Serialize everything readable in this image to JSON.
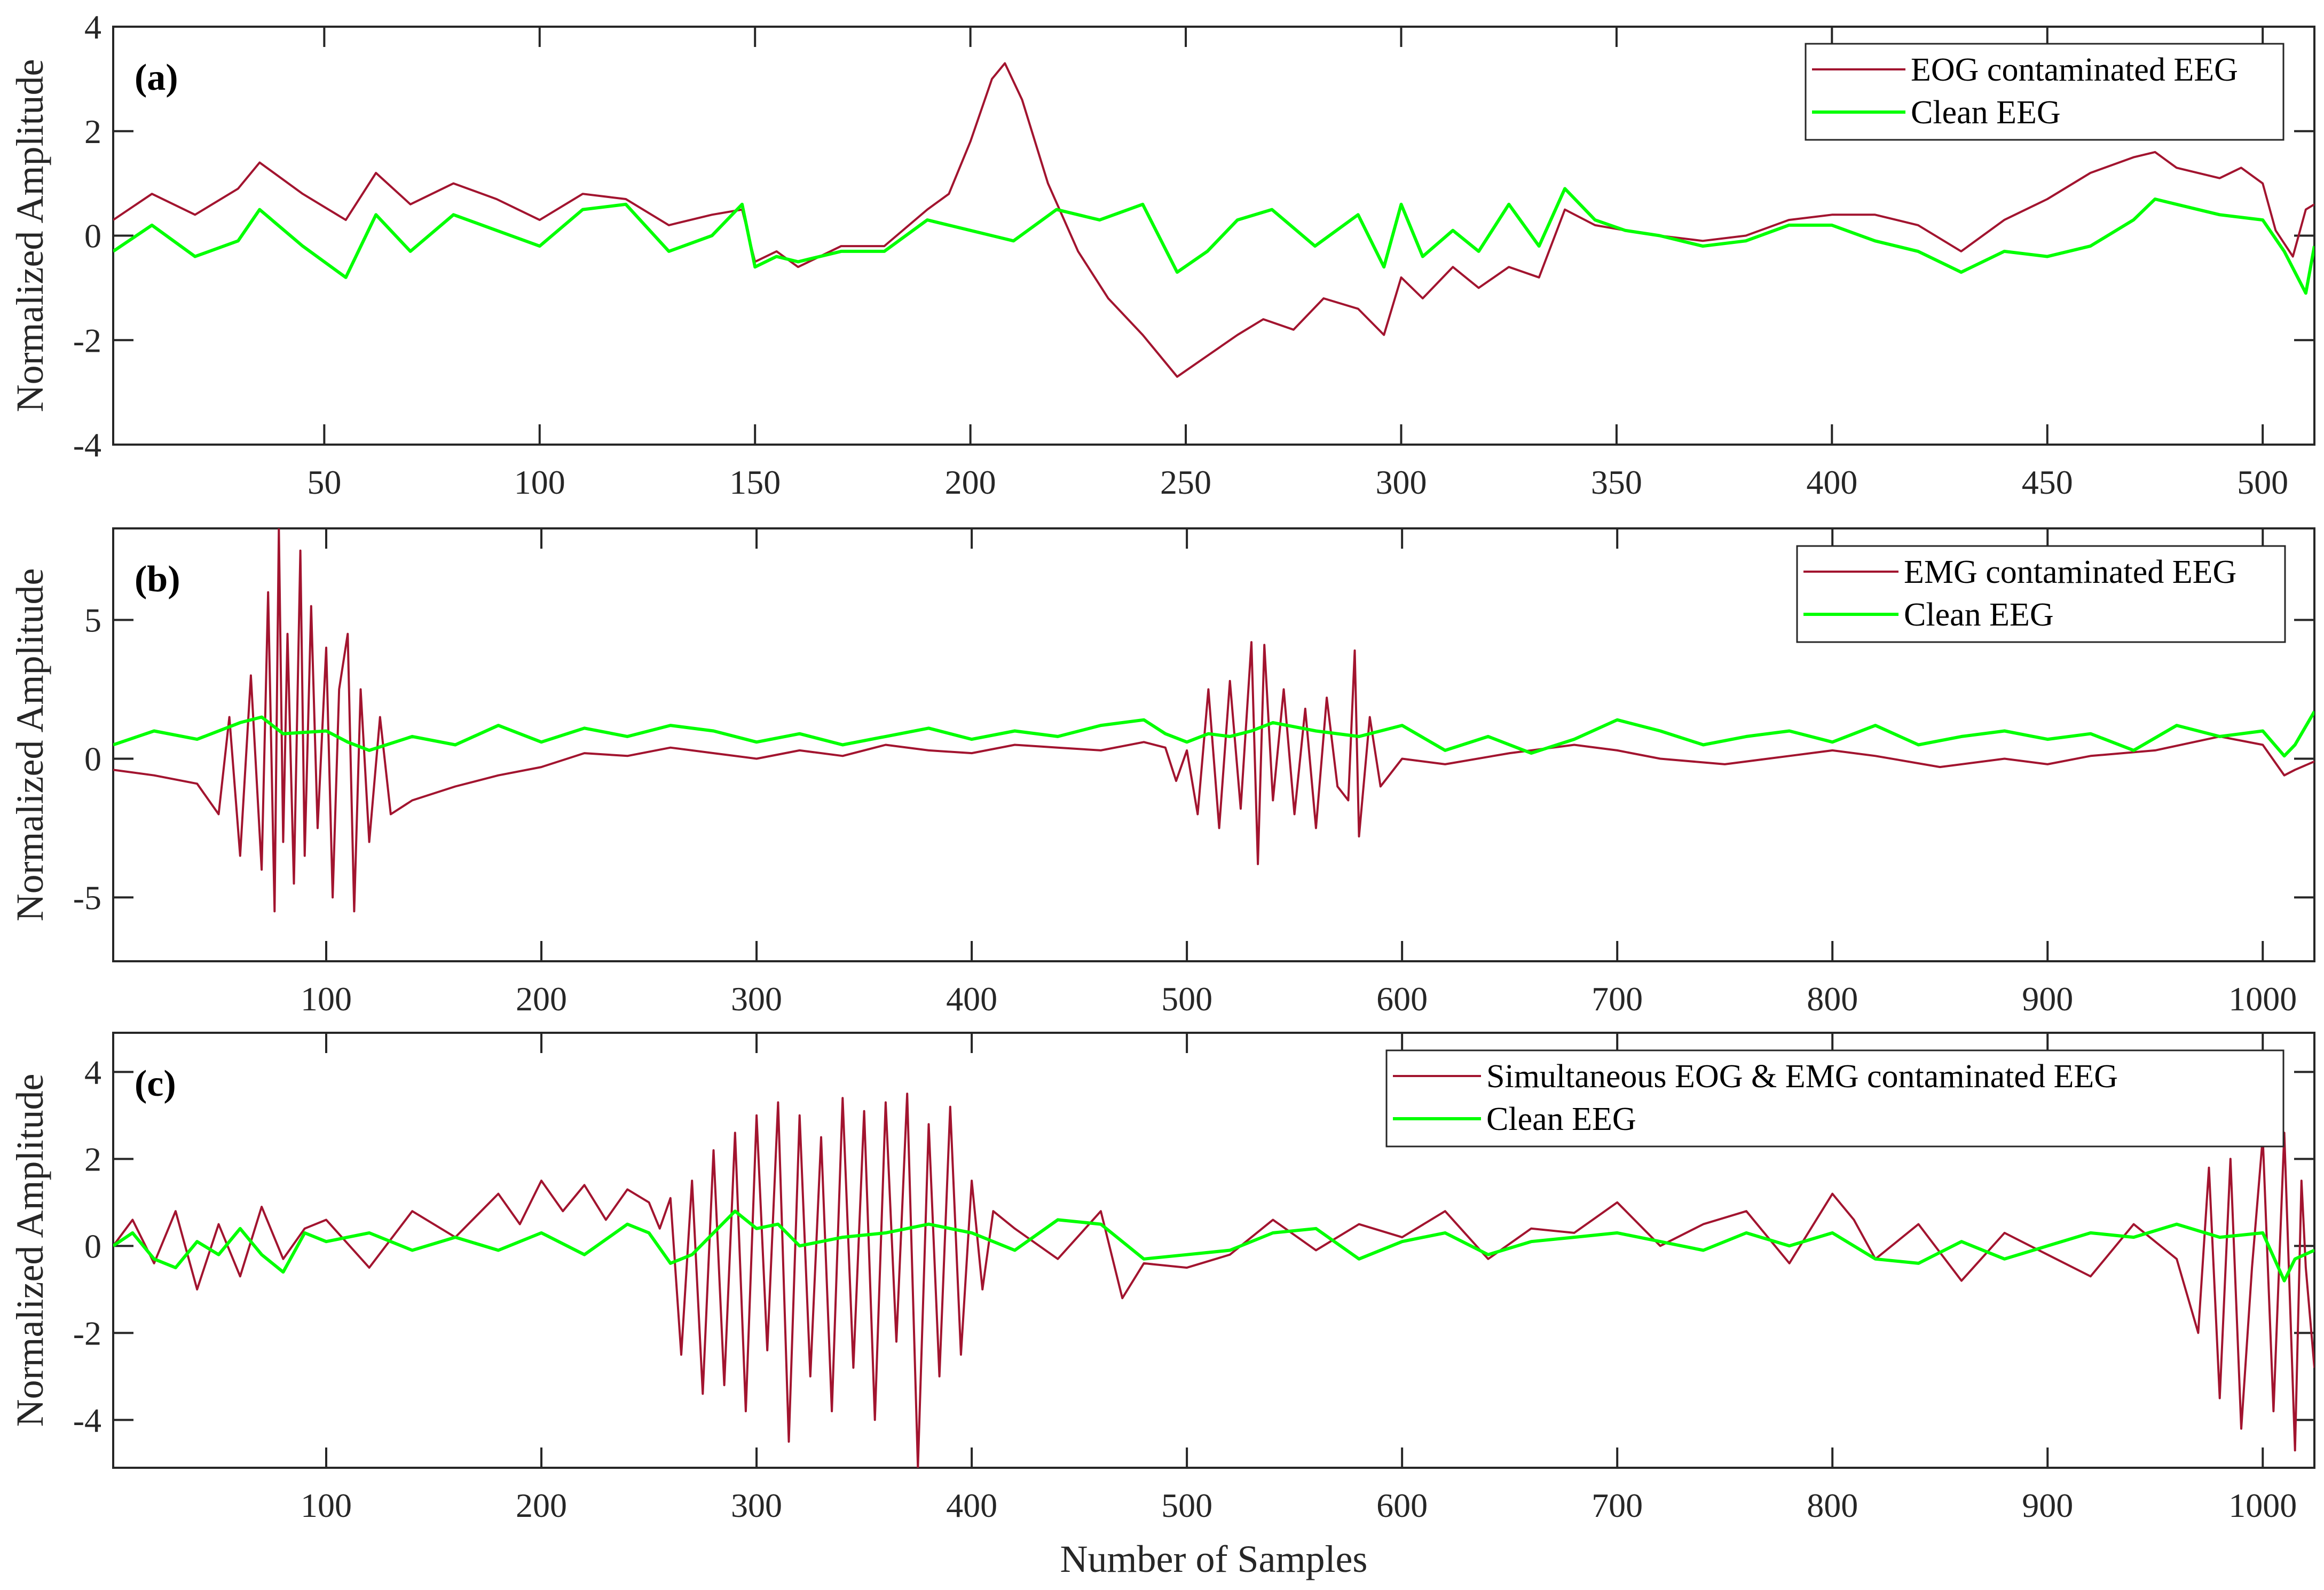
{
  "chart_data": [
    {
      "type": "line",
      "panel_label": "(a)",
      "ylabel": "Normalized Amplitude",
      "xlim": [
        1,
        512
      ],
      "ylim": [
        -4,
        4
      ],
      "xticks": [
        50,
        100,
        150,
        200,
        250,
        300,
        350,
        400,
        450,
        500
      ],
      "yticks": [
        -4,
        -2,
        0,
        2,
        4
      ],
      "legend_position": "top-right",
      "series": [
        {
          "name": "EOG contaminated EEG",
          "color": "#A2142F",
          "x": [
            1,
            10,
            20,
            30,
            35,
            45,
            55,
            62,
            70,
            80,
            90,
            100,
            110,
            120,
            130,
            140,
            147,
            150,
            155,
            160,
            170,
            180,
            190,
            195,
            200,
            205,
            208,
            212,
            218,
            225,
            232,
            240,
            248,
            255,
            262,
            268,
            275,
            282,
            290,
            296,
            300,
            305,
            312,
            318,
            325,
            332,
            338,
            345,
            352,
            360,
            370,
            380,
            390,
            400,
            410,
            420,
            430,
            440,
            450,
            460,
            470,
            475,
            480,
            490,
            495,
            500,
            503,
            507,
            510,
            512
          ],
          "values": [
            0.3,
            0.8,
            0.4,
            0.9,
            1.4,
            0.8,
            0.3,
            1.2,
            0.6,
            1.0,
            0.7,
            0.3,
            0.8,
            0.7,
            0.2,
            0.4,
            0.5,
            -0.5,
            -0.3,
            -0.6,
            -0.2,
            -0.2,
            0.5,
            0.8,
            1.8,
            3.0,
            3.3,
            2.6,
            1.0,
            -0.3,
            -1.2,
            -1.9,
            -2.7,
            -2.3,
            -1.9,
            -1.6,
            -1.8,
            -1.2,
            -1.4,
            -1.9,
            -0.8,
            -1.2,
            -0.6,
            -1.0,
            -0.6,
            -0.8,
            0.5,
            0.2,
            0.1,
            0.0,
            -0.1,
            0.0,
            0.3,
            0.4,
            0.4,
            0.2,
            -0.3,
            0.3,
            0.7,
            1.2,
            1.5,
            1.6,
            1.3,
            1.1,
            1.3,
            1.0,
            0.1,
            -0.4,
            0.5,
            0.6
          ]
        },
        {
          "name": "Clean EEG",
          "color": "#00FF00",
          "x": [
            1,
            10,
            20,
            30,
            35,
            45,
            55,
            62,
            70,
            80,
            90,
            100,
            110,
            120,
            130,
            140,
            147,
            150,
            155,
            160,
            170,
            180,
            190,
            195,
            200,
            205,
            210,
            215,
            220,
            230,
            240,
            248,
            255,
            262,
            270,
            280,
            290,
            296,
            300,
            305,
            312,
            318,
            325,
            332,
            338,
            345,
            352,
            360,
            370,
            380,
            390,
            400,
            410,
            420,
            430,
            440,
            450,
            460,
            470,
            475,
            480,
            490,
            500,
            505,
            510,
            512
          ],
          "values": [
            -0.3,
            0.2,
            -0.4,
            -0.1,
            0.5,
            -0.2,
            -0.8,
            0.4,
            -0.3,
            0.4,
            0.1,
            -0.2,
            0.5,
            0.6,
            -0.3,
            0.0,
            0.6,
            -0.6,
            -0.4,
            -0.5,
            -0.3,
            -0.3,
            0.3,
            0.2,
            0.1,
            0.0,
            -0.1,
            0.2,
            0.5,
            0.3,
            0.6,
            -0.7,
            -0.3,
            0.3,
            0.5,
            -0.2,
            0.4,
            -0.6,
            0.6,
            -0.4,
            0.1,
            -0.3,
            0.6,
            -0.2,
            0.9,
            0.3,
            0.1,
            0.0,
            -0.2,
            -0.1,
            0.2,
            0.2,
            -0.1,
            -0.3,
            -0.7,
            -0.3,
            -0.4,
            -0.2,
            0.3,
            0.7,
            0.6,
            0.4,
            0.3,
            -0.3,
            -1.1,
            -0.2
          ]
        }
      ]
    },
    {
      "type": "line",
      "panel_label": "(b)",
      "ylabel": "Normalized Amplitude",
      "xlim": [
        1,
        1024
      ],
      "ylim": [
        -7.3,
        8.3
      ],
      "xticks": [
        100,
        200,
        300,
        400,
        500,
        600,
        700,
        800,
        900,
        1000
      ],
      "yticks": [
        -5,
        0,
        5
      ],
      "legend_position": "top-right",
      "series": [
        {
          "name": "EMG contaminated EEG",
          "color": "#A2142F",
          "x": [
            1,
            20,
            40,
            50,
            55,
            60,
            65,
            70,
            73,
            76,
            78,
            80,
            82,
            85,
            88,
            90,
            93,
            96,
            100,
            103,
            106,
            110,
            113,
            116,
            120,
            125,
            130,
            140,
            160,
            180,
            200,
            220,
            240,
            260,
            280,
            300,
            320,
            340,
            360,
            380,
            400,
            420,
            440,
            460,
            480,
            490,
            495,
            500,
            505,
            510,
            515,
            520,
            525,
            530,
            533,
            536,
            540,
            545,
            550,
            555,
            560,
            565,
            570,
            575,
            578,
            580,
            585,
            590,
            600,
            620,
            650,
            680,
            700,
            720,
            750,
            780,
            800,
            820,
            850,
            880,
            900,
            920,
            950,
            980,
            1000,
            1010,
            1015,
            1024
          ],
          "values": [
            -0.4,
            -0.6,
            -0.9,
            -2.0,
            1.5,
            -3.5,
            3.0,
            -4.0,
            6.0,
            -5.5,
            8.3,
            -3.0,
            4.5,
            -4.5,
            7.5,
            -3.5,
            5.5,
            -2.5,
            4.0,
            -5.0,
            2.5,
            4.5,
            -5.5,
            2.5,
            -3.0,
            1.5,
            -2.0,
            -1.5,
            -1.0,
            -0.6,
            -0.3,
            0.2,
            0.1,
            0.4,
            0.2,
            0.0,
            0.3,
            0.1,
            0.5,
            0.3,
            0.2,
            0.5,
            0.4,
            0.3,
            0.6,
            0.4,
            -0.8,
            0.3,
            -2.0,
            2.5,
            -2.5,
            2.8,
            -1.8,
            4.2,
            -3.8,
            4.1,
            -1.5,
            2.5,
            -2.0,
            1.8,
            -2.5,
            2.2,
            -1.0,
            -1.5,
            3.9,
            -2.8,
            1.5,
            -1.0,
            0.0,
            -0.2,
            0.2,
            0.5,
            0.3,
            0.0,
            -0.2,
            0.1,
            0.3,
            0.1,
            -0.3,
            0.0,
            -0.2,
            0.1,
            0.3,
            0.8,
            0.5,
            -0.6,
            -0.4,
            -0.1
          ]
        },
        {
          "name": "Clean EEG",
          "color": "#00FF00",
          "x": [
            1,
            20,
            40,
            60,
            70,
            80,
            100,
            110,
            120,
            140,
            160,
            180,
            200,
            220,
            240,
            260,
            280,
            300,
            320,
            340,
            360,
            380,
            400,
            420,
            440,
            460,
            480,
            490,
            500,
            510,
            520,
            530,
            540,
            560,
            580,
            600,
            620,
            640,
            660,
            680,
            700,
            720,
            740,
            760,
            780,
            800,
            820,
            840,
            860,
            880,
            900,
            920,
            940,
            960,
            980,
            1000,
            1010,
            1015,
            1024
          ],
          "values": [
            0.5,
            1.0,
            0.7,
            1.3,
            1.5,
            0.9,
            1.0,
            0.6,
            0.3,
            0.8,
            0.5,
            1.2,
            0.6,
            1.1,
            0.8,
            1.2,
            1.0,
            0.6,
            0.9,
            0.5,
            0.8,
            1.1,
            0.7,
            1.0,
            0.8,
            1.2,
            1.4,
            0.9,
            0.6,
            0.9,
            0.8,
            1.0,
            1.3,
            1.0,
            0.8,
            1.2,
            0.3,
            0.8,
            0.2,
            0.7,
            1.4,
            1.0,
            0.5,
            0.8,
            1.0,
            0.6,
            1.2,
            0.5,
            0.8,
            1.0,
            0.7,
            0.9,
            0.3,
            1.2,
            0.8,
            1.0,
            0.1,
            0.5,
            1.7
          ]
        }
      ]
    },
    {
      "type": "line",
      "panel_label": "(c)",
      "xlabel": "Number of Samples",
      "ylabel": "Normalized Amplitude",
      "xlim": [
        1,
        1024
      ],
      "ylim": [
        -5.1,
        4.9
      ],
      "xticks": [
        100,
        200,
        300,
        400,
        500,
        600,
        700,
        800,
        900,
        1000
      ],
      "yticks": [
        -4,
        -2,
        0,
        2,
        4
      ],
      "legend_position": "top-right",
      "series": [
        {
          "name": "Simultaneous EOG & EMG contaminated EEG",
          "color": "#A2142F",
          "x": [
            1,
            10,
            20,
            30,
            40,
            50,
            60,
            70,
            80,
            90,
            100,
            120,
            140,
            160,
            180,
            190,
            200,
            210,
            220,
            230,
            240,
            250,
            255,
            260,
            265,
            270,
            275,
            280,
            285,
            290,
            295,
            300,
            305,
            310,
            315,
            320,
            325,
            330,
            335,
            340,
            345,
            350,
            355,
            360,
            365,
            370,
            375,
            380,
            385,
            390,
            395,
            400,
            405,
            410,
            420,
            440,
            460,
            470,
            480,
            500,
            520,
            540,
            560,
            580,
            600,
            620,
            640,
            660,
            680,
            700,
            720,
            740,
            760,
            780,
            800,
            810,
            820,
            840,
            860,
            880,
            900,
            920,
            940,
            960,
            970,
            975,
            980,
            985,
            990,
            995,
            1000,
            1005,
            1010,
            1015,
            1018,
            1020,
            1024
          ],
          "values": [
            0.0,
            0.6,
            -0.4,
            0.8,
            -1.0,
            0.5,
            -0.7,
            0.9,
            -0.3,
            0.4,
            0.6,
            -0.5,
            0.8,
            0.2,
            1.2,
            0.5,
            1.5,
            0.8,
            1.4,
            0.6,
            1.3,
            1.0,
            0.4,
            1.1,
            -2.5,
            1.5,
            -3.4,
            2.2,
            -3.2,
            2.6,
            -3.8,
            3.0,
            -2.4,
            3.3,
            -4.5,
            3.0,
            -3.0,
            2.5,
            -3.8,
            3.4,
            -2.8,
            3.1,
            -4.0,
            3.3,
            -2.2,
            3.5,
            -5.1,
            2.8,
            -3.0,
            3.2,
            -2.5,
            1.5,
            -1.0,
            0.8,
            0.4,
            -0.3,
            0.8,
            -1.2,
            -0.4,
            -0.5,
            -0.2,
            0.6,
            -0.1,
            0.5,
            0.2,
            0.8,
            -0.3,
            0.4,
            0.3,
            1.0,
            0.0,
            0.5,
            0.8,
            -0.4,
            1.2,
            0.6,
            -0.3,
            0.5,
            -0.8,
            0.3,
            -0.2,
            -0.7,
            0.5,
            -0.3,
            -2.0,
            1.8,
            -3.5,
            2.0,
            -4.2,
            -0.5,
            2.5,
            -3.8,
            2.6,
            -4.7,
            1.5,
            -0.5,
            -2.8
          ]
        },
        {
          "name": "Clean EEG",
          "color": "#00FF00",
          "x": [
            1,
            10,
            20,
            30,
            40,
            50,
            60,
            70,
            80,
            90,
            100,
            120,
            140,
            160,
            180,
            200,
            220,
            240,
            250,
            260,
            270,
            280,
            290,
            300,
            310,
            320,
            340,
            360,
            380,
            400,
            420,
            440,
            460,
            480,
            500,
            520,
            540,
            560,
            580,
            600,
            620,
            640,
            660,
            680,
            700,
            720,
            740,
            760,
            780,
            800,
            820,
            840,
            860,
            880,
            900,
            920,
            940,
            960,
            980,
            1000,
            1010,
            1015,
            1024
          ],
          "values": [
            0.0,
            0.3,
            -0.3,
            -0.5,
            0.1,
            -0.2,
            0.4,
            -0.2,
            -0.6,
            0.3,
            0.1,
            0.3,
            -0.1,
            0.2,
            -0.1,
            0.3,
            -0.2,
            0.5,
            0.3,
            -0.4,
            -0.2,
            0.3,
            0.8,
            0.4,
            0.5,
            0.0,
            0.2,
            0.3,
            0.5,
            0.3,
            -0.1,
            0.6,
            0.5,
            -0.3,
            -0.2,
            -0.1,
            0.3,
            0.4,
            -0.3,
            0.1,
            0.3,
            -0.2,
            0.1,
            0.2,
            0.3,
            0.1,
            -0.1,
            0.3,
            0.0,
            0.3,
            -0.3,
            -0.4,
            0.1,
            -0.3,
            0.0,
            0.3,
            0.2,
            0.5,
            0.2,
            0.3,
            -0.8,
            -0.3,
            -0.1
          ]
        }
      ]
    }
  ]
}
